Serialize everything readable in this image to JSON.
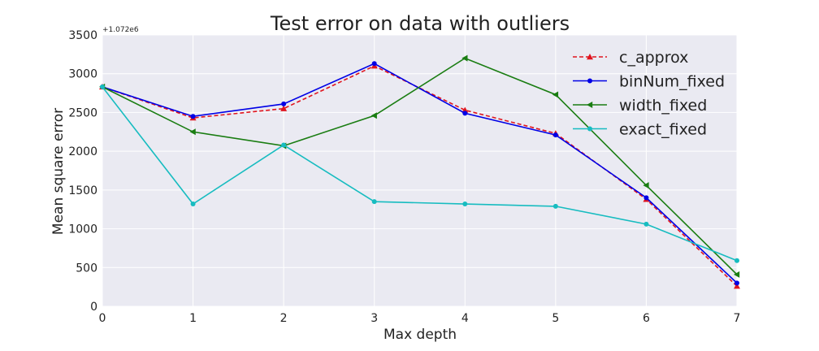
{
  "chart_data": {
    "type": "line",
    "title": "Test error on data with outliers",
    "xlabel": "Max depth",
    "ylabel": "Mean square error",
    "y_offset_label": "+1.072e6",
    "x": [
      0,
      1,
      2,
      3,
      4,
      5,
      6,
      7
    ],
    "xlim": [
      0,
      7
    ],
    "ylim": [
      0,
      3500
    ],
    "xticks": [
      "0",
      "1",
      "2",
      "3",
      "4",
      "5",
      "6",
      "7"
    ],
    "yticks": [
      "0",
      "500",
      "1000",
      "1500",
      "2000",
      "2500",
      "3000",
      "3500"
    ],
    "grid": true,
    "legend_position": "top-right",
    "series": [
      {
        "name": "c_approx",
        "color": "#e0141e",
        "dash": true,
        "marker": "triangle-up",
        "values": [
          2830,
          2430,
          2550,
          3100,
          2530,
          2230,
          1380,
          260
        ]
      },
      {
        "name": "binNum_fixed",
        "color": "#0000e6",
        "dash": false,
        "marker": "circle",
        "values": [
          2830,
          2450,
          2610,
          3130,
          2490,
          2210,
          1400,
          300
        ]
      },
      {
        "name": "width_fixed",
        "color": "#1a7d12",
        "dash": false,
        "marker": "triangle-left",
        "values": [
          2830,
          2250,
          2070,
          2460,
          3200,
          2730,
          1560,
          410
        ]
      },
      {
        "name": "exact_fixed",
        "color": "#17bcc0",
        "dash": false,
        "marker": "circle",
        "values": [
          2830,
          1320,
          2080,
          1350,
          1320,
          1290,
          1060,
          590
        ]
      }
    ]
  }
}
